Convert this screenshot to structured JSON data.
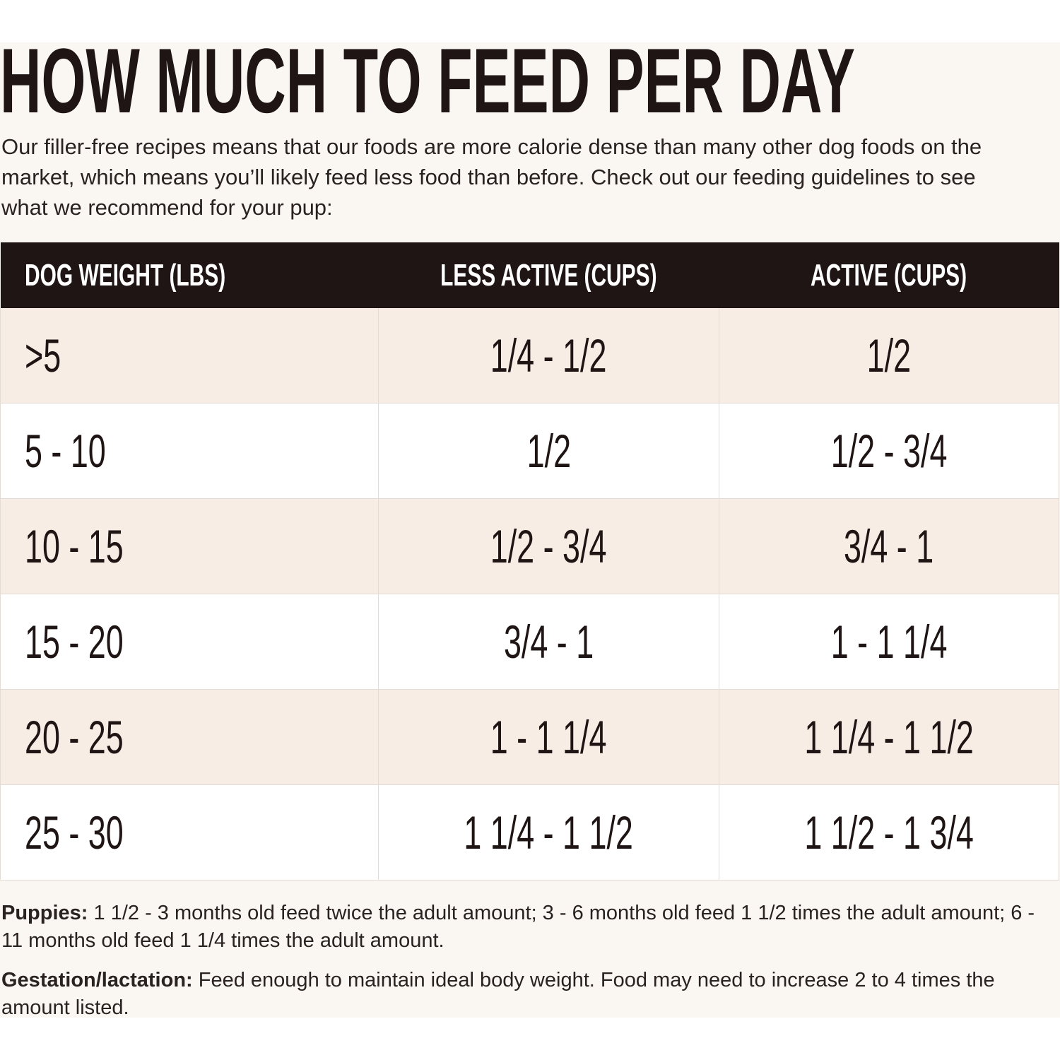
{
  "header": {
    "title": "HOW MUCH TO FEED PER DAY",
    "intro": "Our filler-free recipes means that our foods are more calorie dense than many other dog foods on the market, which means you’ll likely feed less food than before. Check out our feeding guidelines to see what we recommend for your pup:"
  },
  "table": {
    "columns": [
      "DOG WEIGHT (LBS)",
      "LESS ACTIVE (CUPS)",
      "ACTIVE (CUPS)"
    ],
    "rows": [
      [
        ">5",
        "1/4 - 1/2",
        "1/2"
      ],
      [
        "5 - 10",
        "1/2",
        "1/2 - 3/4"
      ],
      [
        "10 - 15",
        "1/2 - 3/4",
        "3/4 - 1"
      ],
      [
        "15 - 20",
        "3/4 - 1",
        "1 - 1 1/4"
      ],
      [
        "20 - 25",
        "1 - 1 1/4",
        "1 1/4 - 1 1/2"
      ],
      [
        "25 - 30",
        "1 1/4 - 1 1/2",
        "1 1/2 - 1 3/4"
      ]
    ]
  },
  "footnotes": [
    {
      "label": "Puppies:",
      "text": "1 1/2 - 3 months old feed twice the adult amount; 3 - 6 months old feed 1 1/2 times the adult amount; 6 - 11 months old feed 1 1/4 times the adult amount."
    },
    {
      "label": "Gestation/lactation:",
      "text": "Feed enough to maintain ideal body weight. Food may need to increase 2 to 4 times the amount listed."
    }
  ]
}
